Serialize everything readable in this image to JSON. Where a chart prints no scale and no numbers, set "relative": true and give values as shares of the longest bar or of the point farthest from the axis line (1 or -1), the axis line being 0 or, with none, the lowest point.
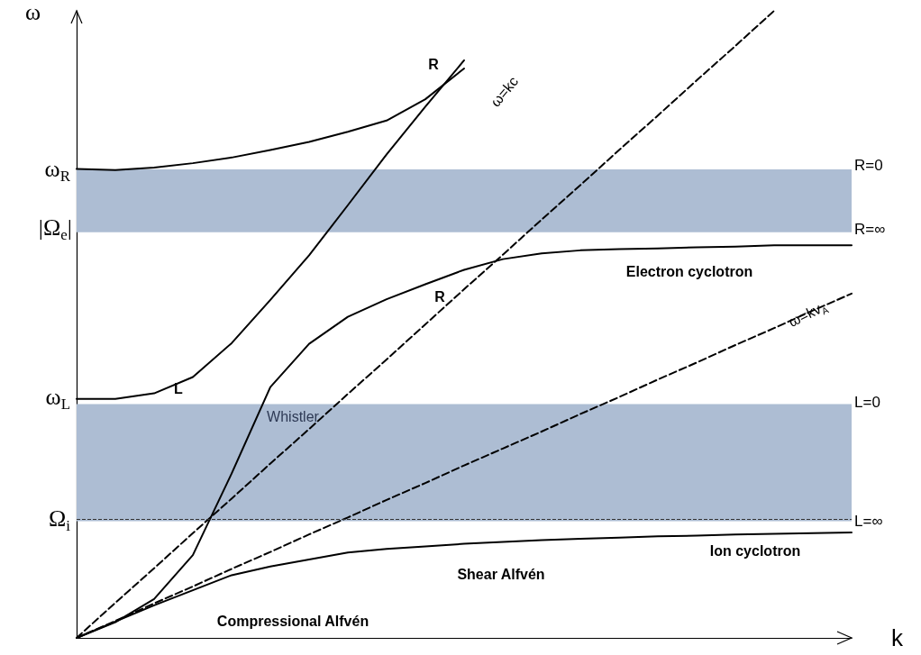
{
  "chart_data": {
    "type": "line",
    "relative": true,
    "xlabel": "k",
    "ylabel": "ω",
    "grid": false,
    "marker": "none",
    "categories": [
      null,
      null,
      null,
      null,
      null,
      null,
      null,
      null,
      null,
      null,
      null,
      null,
      null,
      null,
      null,
      null,
      null,
      null,
      null,
      null,
      null
    ],
    "series": [
      {
        "color": "#000000",
        "line_style": "solid",
        "values": [
          0.748,
          0.746,
          0.75,
          0.757,
          0.766,
          0.778,
          0.791,
          0.807,
          0.825,
          0.859,
          0.908,
          null,
          null,
          null,
          null,
          null,
          null,
          null,
          null,
          null,
          null
        ]
      },
      {
        "color": "#000000",
        "line_style": "solid",
        "values": [
          0.381,
          0.381,
          0.39,
          0.416,
          0.47,
          0.539,
          0.61,
          0.69,
          0.771,
          0.847,
          0.921,
          null,
          null,
          null,
          null,
          null,
          null,
          null,
          null,
          null,
          null
        ]
      },
      {
        "color": "#000000",
        "line_style": "solid",
        "values": [
          0,
          0.025,
          0.062,
          0.132,
          0.262,
          0.4,
          0.469,
          0.512,
          0.54,
          0.564,
          0.587,
          0.604,
          0.613,
          0.618,
          0.62,
          0.621,
          0.623,
          0.624,
          0.626,
          0.626,
          0.626
        ]
      },
      {
        "color": "#000000",
        "line_style": "solid",
        "values": [
          0,
          0.026,
          0.052,
          0.076,
          0.1,
          0.114,
          0.125,
          0.136,
          0.142,
          0.146,
          0.15,
          0.153,
          0.156,
          0.158,
          0.16,
          0.162,
          0.163,
          0.165,
          0.166,
          0.167,
          0.168
        ]
      },
      {
        "color": "#000000",
        "line_style": "dashed",
        "values": [
          0,
          0.056,
          0.111,
          0.167,
          0.222,
          0.278,
          0.333,
          0.389,
          0.444,
          0.5,
          0.556,
          0.611,
          0.667,
          0.722,
          0.778,
          0.833,
          0.889,
          0.944,
          1,
          null,
          null
        ]
      },
      {
        "color": "#000000",
        "line_style": "dashed",
        "values": [
          0,
          0.027,
          0.055,
          0.082,
          0.11,
          0.137,
          0.165,
          0.192,
          0.22,
          0.247,
          0.275,
          0.302,
          0.329,
          0.357,
          0.384,
          0.412,
          0.439,
          0.467,
          0.494,
          0.522,
          0.549
        ]
      }
    ],
    "bands": [
      {
        "axis": "y",
        "from": 0.186,
        "to": 0.373,
        "color": "#adbdd3"
      },
      {
        "axis": "y",
        "from": 0.647,
        "to": 0.747,
        "color": "#adbdd3"
      }
    ],
    "ref_lines": [
      {
        "axis": "y",
        "value": 0.186,
        "color": "#333333",
        "line_style": "dashed"
      }
    ],
    "annotations": [
      "ω$_{R}$",
      "|Ω$_{e}$|",
      "ω$_{L}$",
      "Ω$_{i}$",
      "R=0",
      "R=∞",
      "L=0",
      "L=∞",
      "R",
      "L",
      "R",
      "Electron cyclotron",
      "ω=kc",
      "ω=kv$_{A}$",
      "Whistler",
      "Ion cyclotron",
      "Shear Alfvén",
      "Compressional Alfvén"
    ]
  }
}
